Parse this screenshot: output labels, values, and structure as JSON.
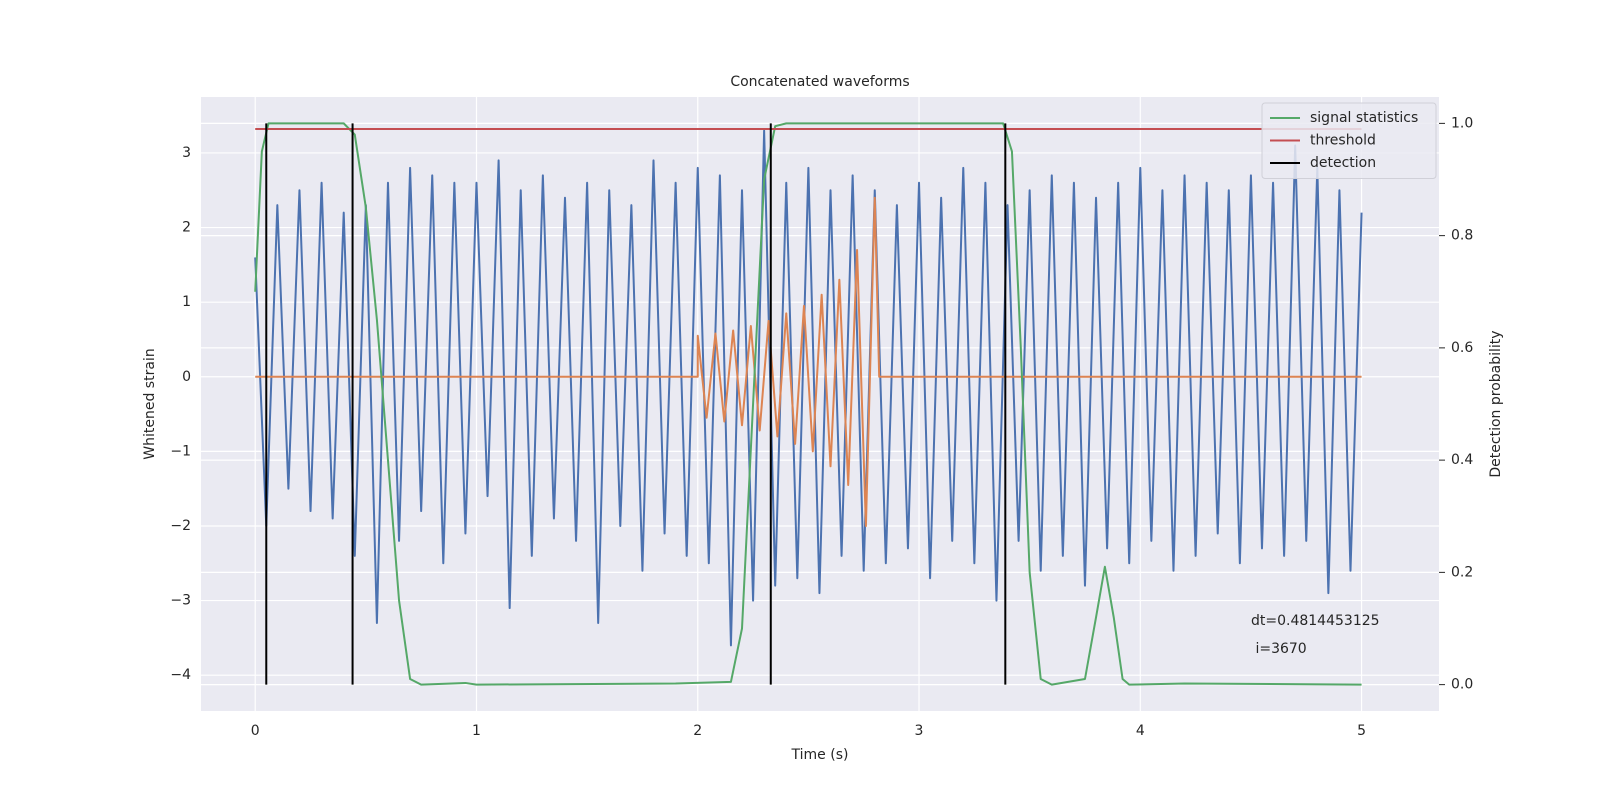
{
  "chart_data": {
    "type": "line",
    "title": "Concatenated waveforms",
    "x_label": "Time (s)",
    "y_label": "Whitened strain",
    "y2_label": "Detection probability",
    "xlim": [
      -0.245,
      5.35
    ],
    "ylim": [
      -4.48,
      3.75
    ],
    "y2lim": [
      -0.047,
      1.047
    ],
    "xticks": [
      0,
      1,
      2,
      3,
      4,
      5
    ],
    "yticks": [
      {
        "value": -4,
        "label": "−4"
      },
      {
        "value": -3,
        "label": "−3"
      },
      {
        "value": -2,
        "label": "−2"
      },
      {
        "value": -1,
        "label": "−1"
      },
      0,
      1,
      2,
      3
    ],
    "y2ticks": [
      {
        "value": 0,
        "label": "0.0"
      },
      0.2,
      0.4,
      0.6,
      0.8,
      {
        "value": 1,
        "label": "1.0"
      }
    ],
    "grid": true,
    "legend": "upper right",
    "annotation": [
      "dt=0.4814453125",
      " i=3670"
    ],
    "series": [
      {
        "color": "#4c72b0",
        "x": [
          0,
          0.05,
          0.1,
          0.15,
          0.2,
          0.25,
          0.3,
          0.35,
          0.4,
          0.45,
          0.5,
          0.55,
          0.6,
          0.65,
          0.7,
          0.75,
          0.8,
          0.85,
          0.9,
          0.95,
          1,
          1.05,
          1.1,
          1.15,
          1.2,
          1.25,
          1.3,
          1.35,
          1.4,
          1.45,
          1.5,
          1.55,
          1.6,
          1.65,
          1.7,
          1.75,
          1.8,
          1.85,
          1.9,
          1.95,
          2,
          2.05,
          2.1,
          2.15,
          2.2,
          2.25,
          2.3,
          2.35,
          2.4,
          2.45,
          2.5,
          2.55,
          2.6,
          2.65,
          2.7,
          2.75,
          2.8,
          2.85,
          2.9,
          2.95,
          3,
          3.05,
          3.1,
          3.15,
          3.2,
          3.25,
          3.3,
          3.35,
          3.4,
          3.45,
          3.5,
          3.55,
          3.6,
          3.65,
          3.7,
          3.75,
          3.8,
          3.85,
          3.9,
          3.95,
          4,
          4.05,
          4.1,
          4.15,
          4.2,
          4.25,
          4.3,
          4.35,
          4.4,
          4.45,
          4.5,
          4.55,
          4.6,
          4.65,
          4.7,
          4.75,
          4.8,
          4.85,
          4.9,
          4.95,
          5
        ],
        "values": [
          1.6,
          -2.0,
          2.3,
          -1.5,
          2.5,
          -1.8,
          2.6,
          -1.9,
          2.2,
          -2.4,
          2.3,
          -3.3,
          2.6,
          -2.2,
          2.8,
          -1.8,
          2.7,
          -2.5,
          2.6,
          -2.1,
          2.6,
          -1.6,
          2.9,
          -3.1,
          2.5,
          -2.4,
          2.7,
          -1.9,
          2.4,
          -2.2,
          2.6,
          -3.3,
          2.5,
          -2.0,
          2.3,
          -2.6,
          2.9,
          -2.1,
          2.6,
          -2.4,
          2.8,
          -2.5,
          2.7,
          -3.6,
          2.5,
          -3.0,
          3.3,
          -2.8,
          2.6,
          -2.7,
          2.8,
          -2.9,
          2.5,
          -2.4,
          2.7,
          -2.6,
          2.5,
          -2.5,
          2.3,
          -2.3,
          2.6,
          -2.7,
          2.4,
          -2.2,
          2.8,
          -2.5,
          2.6,
          -3.0,
          2.3,
          -2.2,
          2.5,
          -2.6,
          2.7,
          -2.4,
          2.6,
          -2.8,
          2.4,
          -2.3,
          2.6,
          -2.5,
          2.8,
          -2.2,
          2.5,
          -2.6,
          2.7,
          -2.4,
          2.6,
          -2.1,
          2.5,
          -2.5,
          2.7,
          -2.3,
          2.6,
          -2.4,
          3.1,
          -2.2,
          2.8,
          -2.9,
          2.5,
          -2.6,
          2.2
        ]
      },
      {
        "color": "#dd8452",
        "x": [
          0,
          2.0,
          2.0,
          2.04,
          2.08,
          2.12,
          2.16,
          2.2,
          2.24,
          2.28,
          2.32,
          2.36,
          2.4,
          2.44,
          2.48,
          2.52,
          2.56,
          2.6,
          2.64,
          2.68,
          2.72,
          2.76,
          2.8,
          2.82,
          5.0
        ],
        "values": [
          0,
          0,
          0.55,
          -0.55,
          0.58,
          -0.6,
          0.62,
          -0.65,
          0.68,
          -0.72,
          0.75,
          -0.8,
          0.85,
          -0.9,
          0.95,
          -1.0,
          1.1,
          -1.2,
          1.3,
          -1.45,
          1.7,
          -2.0,
          2.4,
          0,
          0
        ]
      },
      {
        "name": "signal statistics",
        "color": "#55a868",
        "axis": "y2",
        "x": [
          0,
          0.03,
          0.06,
          0.4,
          0.45,
          0.5,
          0.55,
          0.6,
          0.65,
          0.7,
          0.75,
          0.95,
          1.0,
          1.9,
          2.15,
          2.2,
          2.25,
          2.3,
          2.35,
          2.4,
          3.38,
          3.42,
          3.46,
          3.5,
          3.55,
          3.6,
          3.75,
          3.8,
          3.84,
          3.88,
          3.92,
          3.95,
          4.2,
          5.0
        ],
        "values": [
          0.7,
          0.95,
          1.0,
          1.0,
          0.98,
          0.85,
          0.65,
          0.4,
          0.15,
          0.01,
          0.0,
          0.003,
          0,
          0.002,
          0.005,
          0.1,
          0.5,
          0.9,
          0.995,
          1.0,
          1.0,
          0.95,
          0.6,
          0.2,
          0.01,
          0,
          0.01,
          0.12,
          0.21,
          0.12,
          0.01,
          0,
          0.002,
          0
        ]
      },
      {
        "name": "threshold",
        "color": "#c44e52",
        "axis": "y2",
        "x": [
          0,
          5
        ],
        "values": [
          0.99,
          0.99
        ]
      },
      {
        "name": "detection",
        "color": "#000000",
        "axis": "y2",
        "style": "vlines",
        "x": [
          0.05,
          0.44,
          2.33,
          3.39
        ],
        "values": [
          1,
          1,
          1,
          1
        ]
      }
    ]
  }
}
